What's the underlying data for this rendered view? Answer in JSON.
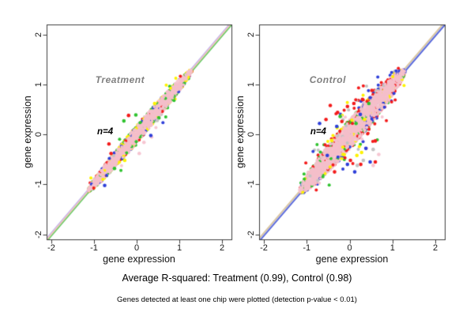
{
  "figure": {
    "background": "#ffffff",
    "captions": {
      "r_squared": "Average R-squared: Treatment (0.99), Control (0.98)",
      "note": "Genes detected at least one chip were plotted (detection p-value < 0.01)"
    }
  },
  "palette": {
    "red": "#f31b1b",
    "green": "#2fc32f",
    "blue": "#2e3fd9",
    "yellow": "#fdf200",
    "gray": "#c2c2c2",
    "lightpink": "#f6c6d2",
    "cloud_pink": "#f4bfca",
    "axis": "#3c3c3c",
    "title_gray": "#7f7f7f"
  },
  "chart_data": [
    {
      "type": "scatter",
      "title": "Treatment",
      "n_label": "n=4",
      "n": 4,
      "r_squared": 0.99,
      "xlabel": "gene expression",
      "ylabel": "gene expression",
      "xlim": [
        -2.11,
        2.22
      ],
      "ylim": [
        -2.1,
        2.2
      ],
      "x_ticks": [
        -2,
        -1,
        0,
        1,
        2
      ],
      "y_ticks": [
        -2,
        -1,
        0,
        1,
        2
      ],
      "grid": false,
      "legend": false,
      "annotations": {
        "title_xy": [
          -0.39,
          1.09
        ],
        "n_label_xy": [
          -0.74,
          0.05
        ]
      },
      "identity_line": {
        "from": [
          -2.1,
          -2.1
        ],
        "to": [
          2.2,
          2.2
        ],
        "strand_colors": [
          "#b6adee",
          "#f3b9c6",
          "#d8c89e",
          "#58c75a"
        ]
      },
      "cloud": {
        "color": "#f4bfca",
        "start": -1.13,
        "end": 1.28,
        "half_width": 0.11,
        "n_points": 2600,
        "seed": 7,
        "fringe_frac": 0.45,
        "spread_frac": 0.015,
        "inner_frac": 0.004,
        "fringe_colors": [
          "green",
          "green",
          "yellow",
          "yellow",
          "blue",
          "gray",
          "red",
          "lightpink"
        ]
      },
      "outliers": [
        {
          "x": -0.19,
          "y": 0.38,
          "c": "red"
        },
        {
          "x": -0.02,
          "y": 0.39,
          "c": "green"
        },
        {
          "x": -0.3,
          "y": 0.27,
          "c": "green"
        },
        {
          "x": -0.65,
          "y": -0.19,
          "c": "red"
        },
        {
          "x": -0.6,
          "y": -0.38,
          "c": "red"
        },
        {
          "x": -0.75,
          "y": -1.02,
          "c": "blue"
        },
        {
          "x": -0.52,
          "y": -0.68,
          "c": "green"
        },
        {
          "x": 0.17,
          "y": -0.16,
          "c": "lightpink"
        },
        {
          "x": 0.35,
          "y": -0.05,
          "c": "lightpink"
        },
        {
          "x": 0.06,
          "y": -0.38,
          "c": "lightpink"
        },
        {
          "x": 0.33,
          "y": -0.02,
          "c": "blue"
        },
        {
          "x": 0.52,
          "y": 0.33,
          "c": "green"
        },
        {
          "x": 0.42,
          "y": 0.62,
          "c": "yellow"
        },
        {
          "x": -0.28,
          "y": -0.52,
          "c": "yellow"
        },
        {
          "x": 0.48,
          "y": 0.28,
          "c": "gray"
        }
      ]
    },
    {
      "type": "scatter",
      "title": "Control",
      "n_label": "n=4",
      "n": 4,
      "r_squared": 0.98,
      "xlabel": "gene expression",
      "ylabel": "gene expression",
      "xlim": [
        -2.11,
        2.22
      ],
      "ylim": [
        -2.1,
        2.2
      ],
      "x_ticks": [
        -2,
        -1,
        0,
        1,
        2
      ],
      "y_ticks": [
        -2,
        -1,
        0,
        1,
        2
      ],
      "grid": false,
      "legend": false,
      "annotations": {
        "title_xy": [
          -0.51,
          1.09
        ],
        "n_label_xy": [
          -0.73,
          0.05
        ]
      },
      "identity_line": {
        "from": [
          -2.1,
          -2.1
        ],
        "to": [
          2.2,
          2.2
        ],
        "strand_colors": [
          "#d9bd8e",
          "#d6cbaa",
          "#8d96e6",
          "#4053d6"
        ]
      },
      "cloud": {
        "color": "#f4bfca",
        "start": -1.15,
        "end": 1.28,
        "half_width": 0.2,
        "n_points": 3000,
        "seed": 19,
        "fringe_frac": 0.4,
        "spread_frac": 0.06,
        "inner_frac": 0.012,
        "fringe_colors": [
          "red",
          "red",
          "blue",
          "yellow",
          "green",
          "gray",
          "lightpink"
        ]
      },
      "outliers": [
        {
          "x": -0.55,
          "y": 0.3,
          "c": "red"
        },
        {
          "x": -0.45,
          "y": 0.58,
          "c": "red"
        },
        {
          "x": -0.28,
          "y": 0.44,
          "c": "red"
        },
        {
          "x": -0.05,
          "y": 0.56,
          "c": "red"
        },
        {
          "x": 0.1,
          "y": 0.62,
          "c": "red"
        },
        {
          "x": -0.18,
          "y": 0.26,
          "c": "red"
        },
        {
          "x": 0.3,
          "y": 0.7,
          "c": "red"
        },
        {
          "x": 0.52,
          "y": 0.88,
          "c": "red"
        },
        {
          "x": 0.6,
          "y": -0.13,
          "c": "red"
        },
        {
          "x": 0.6,
          "y": -0.55,
          "c": "red"
        },
        {
          "x": 0.26,
          "y": -0.6,
          "c": "red"
        },
        {
          "x": 0.02,
          "y": -0.52,
          "c": "red"
        },
        {
          "x": -0.35,
          "y": -0.75,
          "c": "red"
        },
        {
          "x": -0.7,
          "y": 0.22,
          "c": "blue"
        },
        {
          "x": -0.3,
          "y": 0.16,
          "c": "blue"
        },
        {
          "x": 0.38,
          "y": -0.28,
          "c": "blue"
        },
        {
          "x": -0.05,
          "y": -0.6,
          "c": "blue"
        },
        {
          "x": 0.12,
          "y": -0.75,
          "c": "blue"
        },
        {
          "x": 0.48,
          "y": -0.55,
          "c": "blue"
        },
        {
          "x": 0.25,
          "y": 0.4,
          "c": "blue"
        },
        {
          "x": -0.52,
          "y": -0.42,
          "c": "blue"
        },
        {
          "x": -0.42,
          "y": -0.12,
          "c": "yellow"
        },
        {
          "x": -0.15,
          "y": -0.4,
          "c": "yellow"
        },
        {
          "x": 0.17,
          "y": -0.42,
          "c": "yellow"
        },
        {
          "x": 0.28,
          "y": -0.36,
          "c": "yellow"
        },
        {
          "x": 0.35,
          "y": 0.3,
          "c": "yellow"
        },
        {
          "x": -0.22,
          "y": 0.36,
          "c": "green"
        },
        {
          "x": 0.15,
          "y": 0.22,
          "c": "green"
        },
        {
          "x": 0.45,
          "y": 0.62,
          "c": "green"
        },
        {
          "x": 0.32,
          "y": -0.52,
          "c": "gray"
        },
        {
          "x": 0.18,
          "y": -0.62,
          "c": "gray"
        },
        {
          "x": 0.55,
          "y": -0.3,
          "c": "gray"
        },
        {
          "x": 0.55,
          "y": -0.62,
          "c": "lightpink"
        },
        {
          "x": 0.68,
          "y": -0.4,
          "c": "lightpink"
        },
        {
          "x": 0.35,
          "y": 0.55,
          "c": "lightpink"
        }
      ]
    }
  ]
}
